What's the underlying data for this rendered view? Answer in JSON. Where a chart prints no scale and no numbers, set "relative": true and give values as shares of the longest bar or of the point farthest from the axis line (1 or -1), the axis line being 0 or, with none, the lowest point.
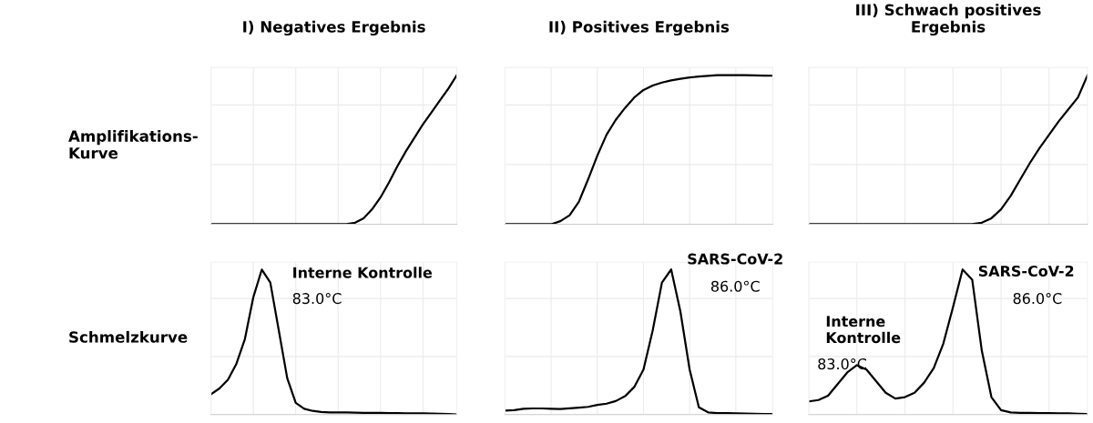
{
  "chart_data": [
    {
      "type": "line",
      "title": "I) Negatives Ergebnis",
      "ylabel": "Amplifikations-\nKurve",
      "relative": true,
      "grid": true,
      "marker": "none",
      "line_style": "solid",
      "categories": [
        null,
        null,
        null,
        null,
        null,
        null,
        null,
        null,
        null,
        null,
        null,
        null,
        null,
        null,
        null,
        null,
        null,
        null,
        null,
        null,
        null,
        null,
        null,
        null,
        null,
        null,
        null,
        null,
        null,
        null
      ],
      "series": [
        {
          "color": "#000000",
          "values": [
            0,
            0,
            0,
            0,
            0,
            0,
            0,
            0,
            0,
            0,
            0,
            0,
            0,
            0,
            0,
            0,
            0,
            0.01,
            0.04,
            0.1,
            0.18,
            0.28,
            0.39,
            0.49,
            0.58,
            0.67,
            0.75,
            0.83,
            0.91,
            1.0
          ]
        }
      ]
    },
    {
      "type": "line",
      "title": "II) Positives Ergebnis",
      "relative": true,
      "grid": true,
      "marker": "none",
      "line_style": "solid",
      "categories": [
        null,
        null,
        null,
        null,
        null,
        null,
        null,
        null,
        null,
        null,
        null,
        null,
        null,
        null,
        null,
        null,
        null,
        null,
        null,
        null,
        null,
        null,
        null,
        null,
        null,
        null,
        null,
        null,
        null,
        null
      ],
      "series": [
        {
          "color": "#000000",
          "values": [
            0,
            0,
            0,
            0,
            0,
            0,
            0.02,
            0.06,
            0.15,
            0.3,
            0.46,
            0.6,
            0.7,
            0.78,
            0.85,
            0.9,
            0.93,
            0.95,
            0.965,
            0.975,
            0.985,
            0.99,
            0.995,
            1.0,
            1.0,
            1.0,
            1.0,
            0.998,
            0.997,
            0.996
          ]
        }
      ]
    },
    {
      "type": "line",
      "title": "III) Schwach positives\nErgebnis",
      "relative": true,
      "grid": true,
      "marker": "none",
      "line_style": "solid",
      "categories": [
        null,
        null,
        null,
        null,
        null,
        null,
        null,
        null,
        null,
        null,
        null,
        null,
        null,
        null,
        null,
        null,
        null,
        null,
        null,
        null,
        null,
        null,
        null,
        null,
        null,
        null,
        null,
        null,
        null,
        null
      ],
      "series": [
        {
          "color": "#000000",
          "values": [
            0,
            0,
            0,
            0,
            0,
            0,
            0,
            0,
            0,
            0,
            0,
            0,
            0,
            0,
            0,
            0,
            0,
            0,
            0.01,
            0.04,
            0.1,
            0.19,
            0.3,
            0.41,
            0.51,
            0.6,
            0.69,
            0.77,
            0.85,
            1.0
          ]
        }
      ]
    },
    {
      "type": "line",
      "ylabel": "Schmelzkurve",
      "relative": true,
      "grid": true,
      "marker": "none",
      "line_style": "solid",
      "annotations": [
        "Interne Kontrolle",
        "83.0°C"
      ],
      "categories": [
        null,
        null,
        null,
        null,
        null,
        null,
        null,
        null,
        null,
        null,
        null,
        null,
        null,
        null,
        null,
        null,
        null,
        null,
        null,
        null,
        null,
        null,
        null,
        null,
        null,
        null,
        null,
        null,
        null,
        null
      ],
      "series": [
        {
          "color": "#000000",
          "values": [
            0.14,
            0.18,
            0.24,
            0.35,
            0.52,
            0.81,
            1.0,
            0.91,
            0.58,
            0.25,
            0.08,
            0.04,
            0.025,
            0.018,
            0.015,
            0.015,
            0.014,
            0.013,
            0.012,
            0.012,
            0.011,
            0.01,
            0.01,
            0.009,
            0.008,
            0.008,
            0.007,
            0.005,
            0.003,
            0.0
          ]
        }
      ]
    },
    {
      "type": "line",
      "relative": true,
      "grid": true,
      "marker": "none",
      "line_style": "solid",
      "annotations": [
        "SARS-CoV-2",
        "86.0°C"
      ],
      "categories": [
        null,
        null,
        null,
        null,
        null,
        null,
        null,
        null,
        null,
        null,
        null,
        null,
        null,
        null,
        null,
        null,
        null,
        null,
        null,
        null,
        null,
        null,
        null,
        null,
        null,
        null,
        null,
        null,
        null,
        null
      ],
      "series": [
        {
          "color": "#000000",
          "values": [
            0.027,
            0.03,
            0.04,
            0.042,
            0.042,
            0.04,
            0.038,
            0.043,
            0.048,
            0.053,
            0.066,
            0.075,
            0.093,
            0.126,
            0.19,
            0.31,
            0.58,
            0.91,
            1.0,
            0.71,
            0.31,
            0.05,
            0.015,
            0.01,
            0.01,
            0.008,
            0.007,
            0.005,
            0.004,
            0.003
          ]
        }
      ]
    },
    {
      "type": "line",
      "relative": true,
      "grid": true,
      "marker": "none",
      "line_style": "solid",
      "annotations": [
        "SARS-CoV-2",
        "86.0°C",
        "Interne\nKontrolle",
        "83.0°C"
      ],
      "categories": [
        null,
        null,
        null,
        null,
        null,
        null,
        null,
        null,
        null,
        null,
        null,
        null,
        null,
        null,
        null,
        null,
        null,
        null,
        null,
        null,
        null,
        null,
        null,
        null,
        null,
        null,
        null,
        null,
        null,
        null
      ],
      "series": [
        {
          "color": "#000000",
          "values": [
            0.09,
            0.1,
            0.13,
            0.21,
            0.29,
            0.34,
            0.31,
            0.23,
            0.15,
            0.11,
            0.12,
            0.15,
            0.22,
            0.32,
            0.49,
            0.74,
            1.0,
            0.93,
            0.44,
            0.12,
            0.03,
            0.015,
            0.012,
            0.012,
            0.01,
            0.01,
            0.009,
            0.008,
            0.006,
            0.003
          ]
        }
      ]
    }
  ]
}
